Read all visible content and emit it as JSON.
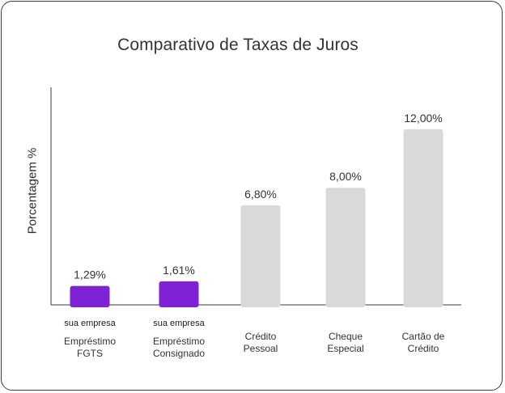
{
  "chart_data": {
    "type": "bar",
    "title": "Comparativo de Taxas de Juros",
    "xlabel": "",
    "ylabel": "Porcentagem %",
    "ylim": [
      0,
      12.5
    ],
    "grid": false,
    "legend": "none",
    "categories": [
      [
        "Empréstimo",
        "FGTS"
      ],
      [
        "Empréstimo",
        "Consignado"
      ],
      [
        "Crédito",
        "Pessoal"
      ],
      [
        "Cheque",
        "Especial"
      ],
      [
        "Cartão de",
        "Crédito"
      ]
    ],
    "tags": [
      "sua empresa",
      "sua empresa",
      "",
      "",
      ""
    ],
    "values": [
      1.29,
      1.61,
      6.8,
      8.0,
      12.0
    ],
    "data_labels": [
      "1,29%",
      "1,61%",
      "6,80%",
      "8,00%",
      "12,00%"
    ],
    "colors": {
      "highlight": "#7f22d6",
      "default": "#d9d9d9",
      "axis": "#3a3a3a"
    },
    "highlighted": [
      true,
      true,
      false,
      false,
      false
    ]
  }
}
